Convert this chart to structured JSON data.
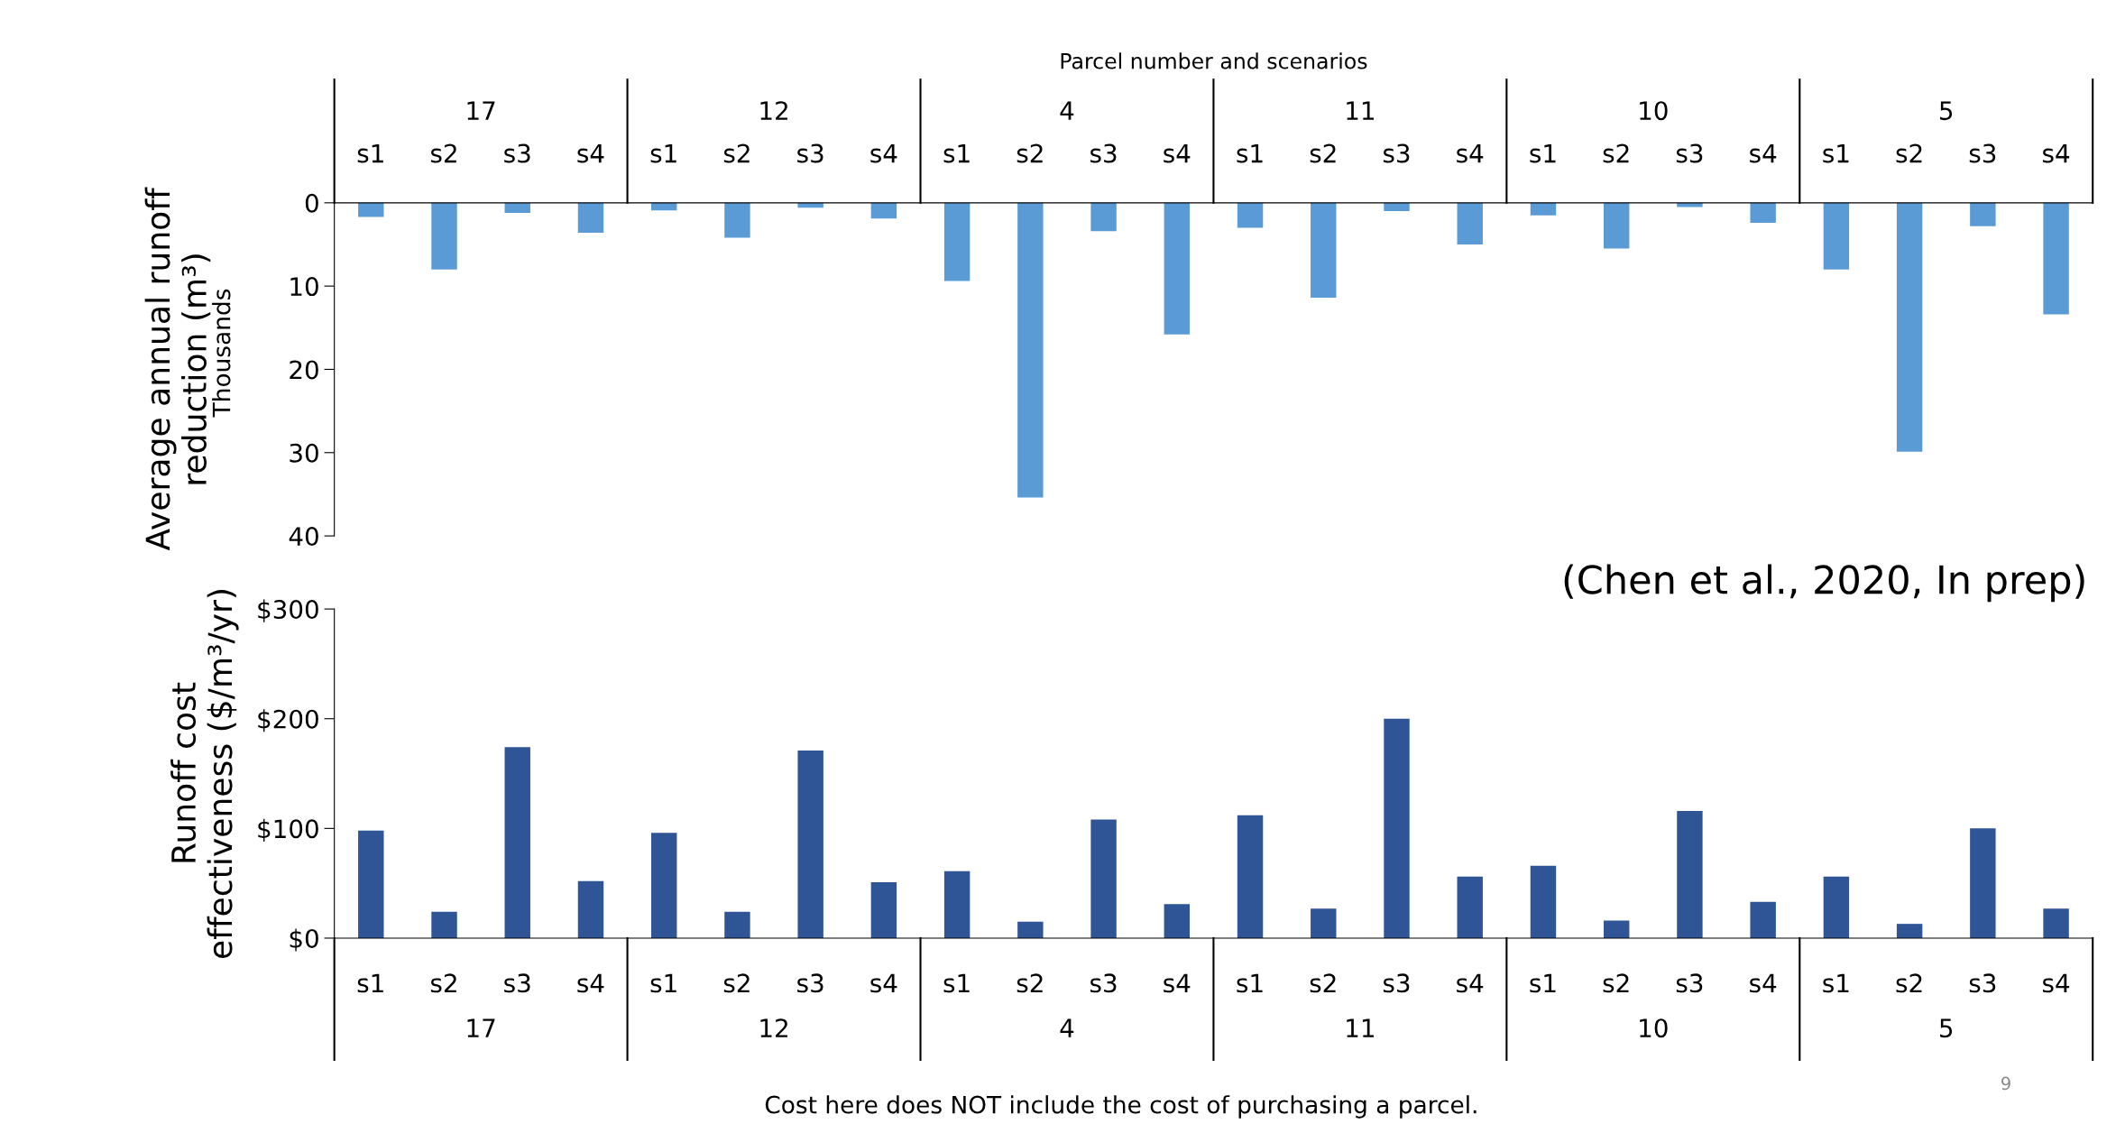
{
  "chart_data": [
    {
      "type": "bar",
      "xlabel": "Parcel number and scenarios",
      "ylabel": "Average annual runoff reduction (m³)",
      "categories": [
        "s1",
        "s2",
        "s3",
        "s4",
        "s1",
        "s2",
        "s3",
        "s4",
        "s1",
        "s2",
        "s3",
        "s4",
        "s1",
        "s2",
        "s3",
        "s4",
        "s1",
        "s2",
        "s3",
        "s4",
        "s1",
        "s2",
        "s3",
        "s4"
      ],
      "series": [
        {
          "color": "#5b9bd5",
          "values": [
            1.7,
            8.0,
            1.2,
            3.6,
            0.9,
            4.2,
            0.6,
            1.9,
            9.4,
            35.4,
            3.4,
            15.8,
            3.0,
            11.4,
            1.0,
            5.0,
            1.5,
            5.5,
            0.5,
            2.4,
            8.0,
            29.9,
            2.8,
            13.4
          ]
        }
      ],
      "ylim": [
        40,
        0
      ],
      "yticks": [
        0,
        10,
        20,
        30,
        40
      ],
      "grid": false,
      "legend": false,
      "annotations": [
        "17",
        "12",
        "4",
        "11",
        "10",
        "5",
        "Thousands",
        "(Chen et al., 2020, In prep)"
      ]
    },
    {
      "type": "bar",
      "ylabel": "Runoff cost effectiveness ($/m³/yr)",
      "categories": [
        "s1",
        "s2",
        "s3",
        "s4",
        "s1",
        "s2",
        "s3",
        "s4",
        "s1",
        "s2",
        "s3",
        "s4",
        "s1",
        "s2",
        "s3",
        "s4",
        "s1",
        "s2",
        "s3",
        "s4",
        "s1",
        "s2",
        "s3",
        "s4"
      ],
      "series": [
        {
          "color": "#2f5597",
          "values": [
            98,
            24,
            174,
            52,
            96,
            24,
            171,
            51,
            61,
            15,
            108,
            31,
            112,
            27,
            200,
            56,
            66,
            16,
            116,
            33,
            56,
            13,
            100,
            27
          ]
        }
      ],
      "ylim": [
        0,
        300
      ],
      "yticks": [
        {
          "value": 0,
          "label": "$0"
        },
        {
          "value": 100,
          "label": "$100"
        },
        {
          "value": 200,
          "label": "$200"
        },
        {
          "value": 300,
          "label": "$300"
        }
      ],
      "grid": false,
      "legend": false,
      "annotations": [
        "17",
        "12",
        "4",
        "11",
        "10",
        "5",
        "Cost here does NOT include the cost of purchasing a parcel.",
        "9"
      ]
    }
  ]
}
